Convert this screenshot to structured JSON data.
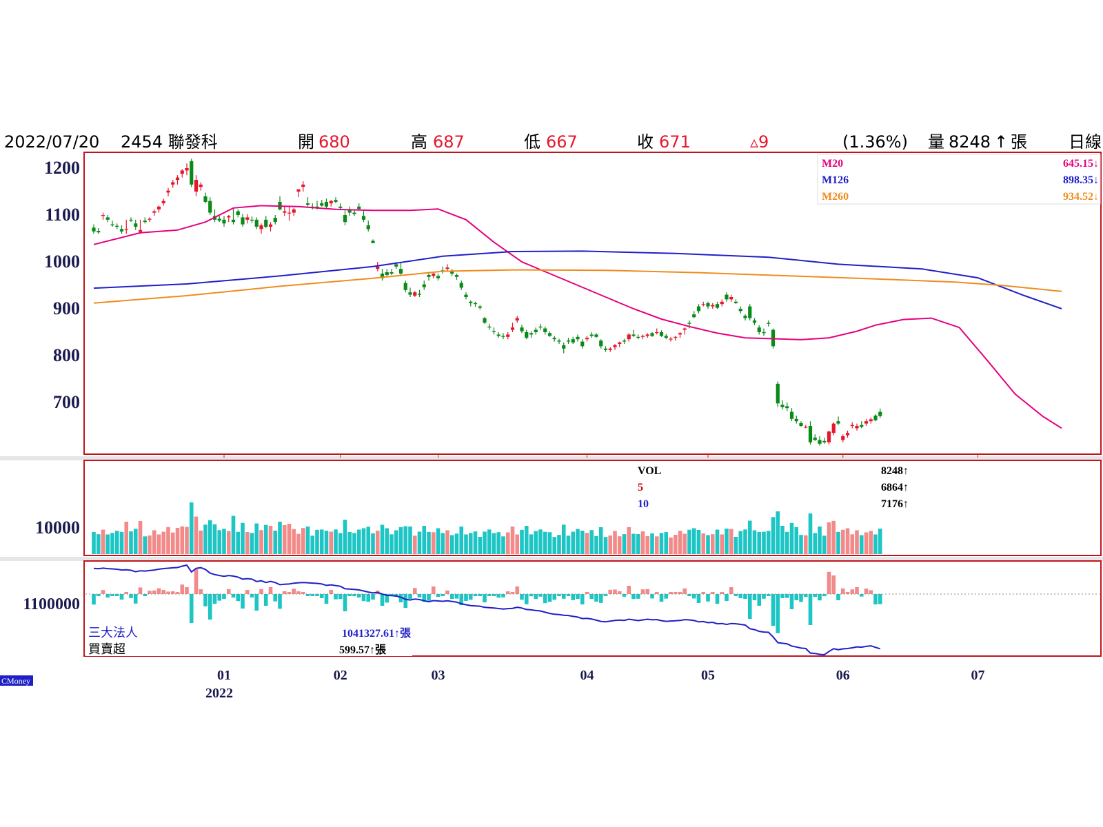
{
  "header": {
    "date": "2022/07/20",
    "symbol": "2454 聯發科",
    "open_label": "開",
    "open": "680",
    "high_label": "高",
    "high": "687",
    "low_label": "低",
    "low": "667",
    "close_label": "收",
    "close": "671",
    "change": "▵9",
    "change_pct": "(1.36%)",
    "volume_label": "量",
    "volume": "8248",
    "volume_arrow": "↑",
    "volume_unit": "張",
    "period": "日線"
  },
  "legend_ma": [
    {
      "name": "M20",
      "value": "645.15↓",
      "color": "#e6007e"
    },
    {
      "name": "M126",
      "value": "898.35↓",
      "color": "#1f1fc8"
    },
    {
      "name": "M260",
      "value": "934.52↓",
      "color": "#f08c1e"
    }
  ],
  "legend_vol": [
    {
      "name": "VOL",
      "value": "8248↑",
      "color": "#000000"
    },
    {
      "name": "5",
      "value": "6864↑",
      "color": "#cc0000"
    },
    {
      "name": "10",
      "value": "7176↑",
      "color": "#1f1fc8"
    }
  ],
  "legend_inst": {
    "name": "三大法人",
    "cum_value": "1041327.61↑張",
    "sub_name": "買賣超",
    "sub_value": "599.57↑張"
  },
  "price_axis_labels": [
    "1200",
    "1100",
    "1000",
    "900",
    "800",
    "700"
  ],
  "vol_axis_label": "10000",
  "inst_axis_label": "1100000",
  "month_labels": [
    "01",
    "02",
    "03",
    "04",
    "05",
    "06",
    "07"
  ],
  "year_label": "2022",
  "watermark": "CMoney",
  "colors": {
    "up": "#e8162c",
    "down": "#0a8a18",
    "vol_up": "#f28a8a",
    "vol_down": "#1ec5c5",
    "frame": "#c0141c"
  },
  "chart_data": {
    "type": "candlestick",
    "x_range": [
      "2021-12-01",
      "2022-07-20"
    ],
    "ylim": [
      600,
      1220
    ],
    "month_ticks": [
      {
        "label": "01",
        "index": 28
      },
      {
        "label": "02",
        "index": 53
      },
      {
        "label": "03",
        "index": 74
      },
      {
        "label": "04",
        "index": 106
      },
      {
        "label": "05",
        "index": 132
      },
      {
        "label": "06",
        "index": 161
      },
      {
        "label": "07",
        "index": 190
      }
    ],
    "moving_averages": [
      {
        "name": "M20",
        "points": [
          [
            0,
            1037
          ],
          [
            10,
            1062
          ],
          [
            18,
            1068
          ],
          [
            24,
            1085
          ],
          [
            30,
            1115
          ],
          [
            36,
            1120
          ],
          [
            44,
            1118
          ],
          [
            52,
            1112
          ],
          [
            60,
            1110
          ],
          [
            68,
            1110
          ],
          [
            74,
            1113
          ],
          [
            80,
            1090
          ],
          [
            86,
            1042
          ],
          [
            92,
            1000
          ],
          [
            98,
            975
          ],
          [
            104,
            950
          ],
          [
            110,
            925
          ],
          [
            116,
            900
          ],
          [
            122,
            878
          ],
          [
            128,
            862
          ],
          [
            134,
            848
          ],
          [
            140,
            838
          ],
          [
            146,
            836
          ],
          [
            152,
            834
          ],
          [
            158,
            838
          ],
          [
            164,
            852
          ],
          [
            168,
            865
          ],
          [
            174,
            877
          ],
          [
            180,
            880
          ],
          [
            186,
            860
          ],
          [
            192,
            790
          ],
          [
            198,
            718
          ],
          [
            204,
            670
          ],
          [
            208,
            645
          ]
        ]
      },
      {
        "name": "M126",
        "points": [
          [
            0,
            944
          ],
          [
            20,
            953
          ],
          [
            40,
            970
          ],
          [
            60,
            990
          ],
          [
            75,
            1012
          ],
          [
            90,
            1022
          ],
          [
            105,
            1023
          ],
          [
            125,
            1018
          ],
          [
            145,
            1010
          ],
          [
            160,
            995
          ],
          [
            178,
            985
          ],
          [
            190,
            966
          ],
          [
            200,
            928
          ],
          [
            208,
            900
          ]
        ]
      },
      {
        "name": "M260",
        "points": [
          [
            0,
            912
          ],
          [
            20,
            928
          ],
          [
            40,
            948
          ],
          [
            60,
            965
          ],
          [
            75,
            980
          ],
          [
            90,
            983
          ],
          [
            110,
            982
          ],
          [
            130,
            977
          ],
          [
            150,
            970
          ],
          [
            170,
            963
          ],
          [
            185,
            957
          ],
          [
            195,
            950
          ],
          [
            208,
            937
          ]
        ]
      }
    ],
    "candles": [
      [
        1073,
        1080,
        1060,
        1065
      ],
      [
        1066,
        1072,
        1060,
        1063
      ],
      [
        1098,
        1105,
        1090,
        1100
      ],
      [
        1095,
        1100,
        1085,
        1090
      ],
      [
        1080,
        1088,
        1075,
        1078
      ],
      [
        1077,
        1082,
        1070,
        1075
      ],
      [
        1070,
        1078,
        1060,
        1065
      ],
      [
        1068,
        1090,
        1060,
        1070
      ],
      [
        1090,
        1095,
        1085,
        1088
      ],
      [
        1082,
        1090,
        1068,
        1075
      ],
      [
        1064,
        1090,
        1060,
        1068
      ],
      [
        1088,
        1095,
        1082,
        1085
      ],
      [
        1090,
        1095,
        1085,
        1092
      ],
      [
        1105,
        1112,
        1098,
        1108
      ],
      [
        1112,
        1120,
        1105,
        1118
      ],
      [
        1125,
        1135,
        1120,
        1130
      ],
      [
        1148,
        1158,
        1140,
        1152
      ],
      [
        1165,
        1175,
        1158,
        1170
      ],
      [
        1175,
        1185,
        1165,
        1180
      ],
      [
        1188,
        1198,
        1180,
        1195
      ],
      [
        1195,
        1210,
        1185,
        1200
      ],
      [
        1215,
        1220,
        1160,
        1165
      ],
      [
        1150,
        1185,
        1140,
        1175
      ],
      [
        1160,
        1170,
        1152,
        1165
      ],
      [
        1140,
        1148,
        1125,
        1128
      ],
      [
        1130,
        1138,
        1100,
        1105
      ],
      [
        1098,
        1112,
        1085,
        1090
      ],
      [
        1092,
        1098,
        1085,
        1088
      ],
      [
        1090,
        1098,
        1075,
        1082
      ],
      [
        1095,
        1100,
        1085,
        1098
      ],
      [
        1090,
        1115,
        1080,
        1085
      ],
      [
        1108,
        1112,
        1095,
        1100
      ],
      [
        1095,
        1102,
        1075,
        1080
      ],
      [
        1090,
        1102,
        1082,
        1095
      ],
      [
        1090,
        1097,
        1083,
        1088
      ],
      [
        1090,
        1095,
        1070,
        1075
      ],
      [
        1070,
        1082,
        1060,
        1078
      ],
      [
        1090,
        1098,
        1072,
        1075
      ],
      [
        1075,
        1085,
        1065,
        1080
      ],
      [
        1094,
        1100,
        1080,
        1085
      ],
      [
        1128,
        1140,
        1110,
        1112
      ],
      [
        1105,
        1118,
        1098,
        1108
      ],
      [
        1104,
        1118,
        1088,
        1105
      ],
      [
        1105,
        1115,
        1098,
        1112
      ],
      [
        1150,
        1155,
        1138,
        1155
      ],
      [
        1160,
        1172,
        1150,
        1165
      ],
      [
        1125,
        1138,
        1118,
        1122
      ],
      [
        1118,
        1125,
        1112,
        1115
      ],
      [
        1118,
        1130,
        1112,
        1116
      ],
      [
        1125,
        1132,
        1118,
        1120
      ],
      [
        1128,
        1135,
        1115,
        1118
      ],
      [
        1125,
        1132,
        1118,
        1130
      ],
      [
        1132,
        1138,
        1125,
        1128
      ],
      [
        1118,
        1125,
        1110,
        1115
      ],
      [
        1100,
        1110,
        1078,
        1085
      ],
      [
        1110,
        1118,
        1098,
        1105
      ],
      [
        1105,
        1112,
        1098,
        1102
      ],
      [
        1118,
        1125,
        1110,
        1113
      ],
      [
        1098,
        1110,
        1085,
        1090
      ],
      [
        1078,
        1088,
        1065,
        1070
      ],
      [
        1045,
        1048,
        1040,
        1040
      ],
      [
        985,
        1000,
        980,
        990
      ],
      [
        975,
        985,
        960,
        965
      ],
      [
        978,
        985,
        970,
        972
      ],
      [
        978,
        985,
        972,
        975
      ],
      [
        995,
        1000,
        985,
        990
      ],
      [
        985,
        998,
        970,
        975
      ],
      [
        955,
        960,
        935,
        940
      ],
      [
        935,
        945,
        925,
        930
      ],
      [
        928,
        938,
        925,
        935
      ],
      [
        932,
        940,
        925,
        930
      ],
      [
        952,
        960,
        940,
        946
      ],
      [
        972,
        978,
        960,
        968
      ],
      [
        970,
        978,
        965,
        975
      ],
      [
        970,
        975,
        960,
        965
      ],
      [
        982,
        990,
        975,
        980
      ],
      [
        985,
        995,
        980,
        988
      ],
      [
        980,
        985,
        970,
        975
      ],
      [
        972,
        975,
        962,
        968
      ],
      [
        955,
        960,
        940,
        945
      ],
      [
        930,
        935,
        920,
        925
      ],
      [
        915,
        918,
        905,
        912
      ],
      [
        912,
        915,
        904,
        910
      ],
      [
        905,
        908,
        898,
        902
      ],
      [
        880,
        882,
        868,
        870
      ],
      [
        862,
        868,
        855,
        860
      ],
      [
        852,
        860,
        845,
        850
      ],
      [
        845,
        850,
        838,
        842
      ],
      [
        842,
        848,
        835,
        840
      ],
      [
        840,
        850,
        835,
        845
      ],
      [
        855,
        870,
        850,
        860
      ],
      [
        875,
        885,
        870,
        880
      ],
      [
        860,
        866,
        848,
        852
      ],
      [
        850,
        855,
        835,
        838
      ],
      [
        848,
        852,
        838,
        845
      ],
      [
        855,
        860,
        845,
        850
      ],
      [
        862,
        868,
        855,
        860
      ],
      [
        858,
        862,
        845,
        850
      ],
      [
        848,
        852,
        840,
        842
      ],
      [
        838,
        842,
        830,
        835
      ],
      [
        832,
        836,
        825,
        830
      ],
      [
        822,
        828,
        805,
        815
      ],
      [
        832,
        838,
        825,
        830
      ],
      [
        835,
        840,
        825,
        828
      ],
      [
        840,
        845,
        830,
        835
      ],
      [
        830,
        835,
        815,
        820
      ],
      [
        835,
        842,
        830,
        838
      ],
      [
        845,
        850,
        838,
        842
      ],
      [
        845,
        848,
        838,
        840
      ],
      [
        832,
        835,
        815,
        820
      ],
      [
        815,
        820,
        808,
        812
      ],
      [
        812,
        818,
        808,
        815
      ],
      [
        818,
        825,
        812,
        822
      ],
      [
        825,
        830,
        818,
        828
      ],
      [
        832,
        836,
        825,
        830
      ],
      [
        835,
        848,
        830,
        845
      ],
      [
        845,
        855,
        840,
        842
      ],
      [
        840,
        845,
        835,
        838
      ],
      [
        840,
        845,
        835,
        842
      ],
      [
        842,
        848,
        838,
        845
      ],
      [
        848,
        850,
        840,
        842
      ],
      [
        850,
        858,
        845,
        850
      ],
      [
        850,
        854,
        840,
        842
      ],
      [
        842,
        846,
        835,
        838
      ],
      [
        835,
        840,
        830,
        836
      ],
      [
        838,
        842,
        832,
        840
      ],
      [
        845,
        850,
        838,
        848
      ],
      [
        855,
        860,
        845,
        858
      ],
      [
        870,
        875,
        858,
        868
      ],
      [
        888,
        895,
        880,
        882
      ],
      [
        905,
        910,
        890,
        895
      ],
      [
        910,
        915,
        905,
        910
      ],
      [
        912,
        915,
        900,
        905
      ],
      [
        905,
        912,
        900,
        908
      ],
      [
        910,
        915,
        900,
        902
      ],
      [
        910,
        920,
        905,
        915
      ],
      [
        930,
        935,
        915,
        920
      ],
      [
        920,
        930,
        915,
        925
      ],
      [
        915,
        920,
        910,
        912
      ],
      [
        900,
        905,
        890,
        895
      ],
      [
        885,
        888,
        875,
        880
      ],
      [
        905,
        910,
        875,
        880
      ],
      [
        875,
        880,
        865,
        870
      ],
      [
        860,
        865,
        845,
        850
      ],
      [
        850,
        858,
        842,
        848
      ],
      [
        870,
        875,
        862,
        868
      ],
      [
        855,
        858,
        815,
        820
      ],
      [
        740,
        745,
        690,
        698
      ],
      [
        695,
        705,
        685,
        690
      ],
      [
        692,
        700,
        682,
        688
      ],
      [
        680,
        688,
        660,
        665
      ],
      [
        665,
        672,
        655,
        660
      ],
      [
        656,
        660,
        648,
        650
      ],
      [
        648,
        652,
        645,
        648
      ],
      [
        650,
        660,
        610,
        615
      ],
      [
        625,
        632,
        618,
        620
      ],
      [
        620,
        628,
        608,
        612
      ],
      [
        618,
        625,
        612,
        615
      ],
      [
        615,
        640,
        610,
        638
      ],
      [
        635,
        658,
        630,
        655
      ],
      [
        660,
        670,
        652,
        655
      ],
      [
        620,
        632,
        615,
        628
      ],
      [
        630,
        640,
        625,
        635
      ],
      [
        650,
        658,
        645,
        652
      ],
      [
        645,
        655,
        640,
        650
      ],
      [
        652,
        660,
        645,
        648
      ],
      [
        655,
        665,
        650,
        660
      ],
      [
        660,
        668,
        655,
        664
      ],
      [
        672,
        675,
        660,
        662
      ],
      [
        680,
        687,
        667,
        671
      ]
    ],
    "volume_series": {
      "name": "VOL",
      "approx_last": 8248
    },
    "institutional_series": {
      "name": "三大法人"
    }
  }
}
